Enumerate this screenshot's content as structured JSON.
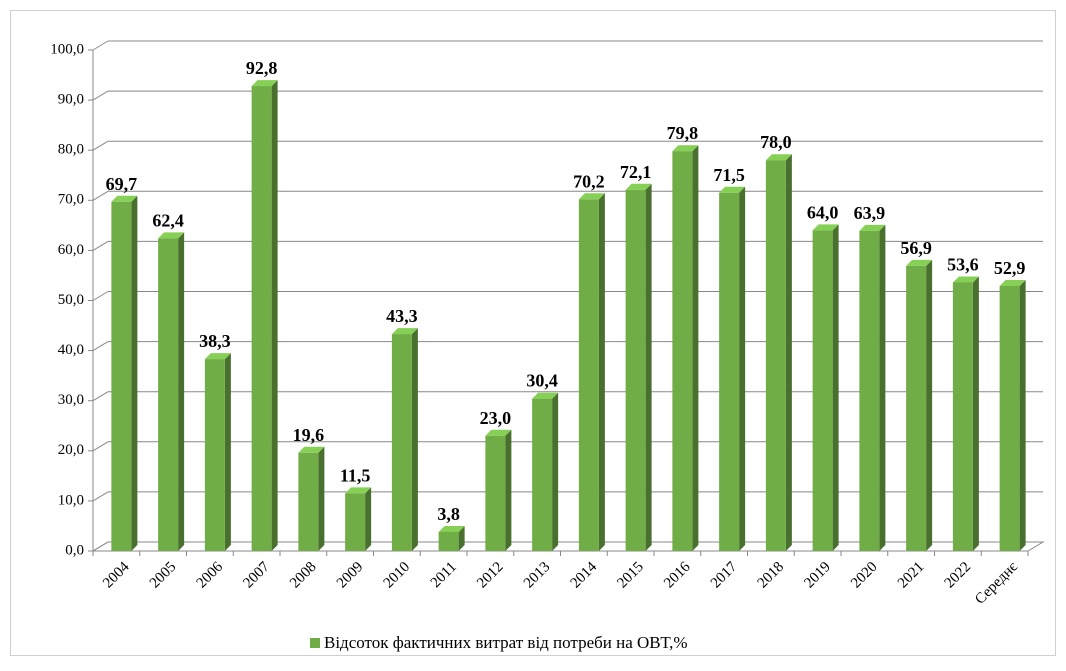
{
  "chart_data": {
    "type": "bar",
    "categories": [
      "2004",
      "2005",
      "2006",
      "2007",
      "2008",
      "2009",
      "2010",
      "2011",
      "2012",
      "2013",
      "2014",
      "2015",
      "2016",
      "2017",
      "2018",
      "2019",
      "2020",
      "2021",
      "2022",
      "Середнє"
    ],
    "series": [
      {
        "name": "Відсоток фактичних витрат від потреби на ОВТ,%",
        "color": "#70ad47",
        "values": [
          69.7,
          62.4,
          38.3,
          92.8,
          19.6,
          11.5,
          43.3,
          3.8,
          23.0,
          30.4,
          70.2,
          72.1,
          79.8,
          71.5,
          78.0,
          64.0,
          63.9,
          56.9,
          53.6,
          52.9
        ],
        "value_labels": [
          "69,7",
          "62,4",
          "38,3",
          "92,8",
          "19,6",
          "11,5",
          "43,3",
          "3,8",
          "23,0",
          "30,4",
          "70,2",
          "72,1",
          "79,8",
          "71,5",
          "78,0",
          "64,0",
          "63,9",
          "56,9",
          "53,6",
          "52,9"
        ]
      }
    ],
    "ylim": [
      0,
      100
    ],
    "yticks": [
      {
        "value": 0,
        "label": "0,0"
      },
      {
        "value": 10,
        "label": "10,0"
      },
      {
        "value": 20,
        "label": "20,0"
      },
      {
        "value": 30,
        "label": "30,0"
      },
      {
        "value": 40,
        "label": "40,0"
      },
      {
        "value": 50,
        "label": "50,0"
      },
      {
        "value": 60,
        "label": "60,0"
      },
      {
        "value": 70,
        "label": "70,0"
      },
      {
        "value": 80,
        "label": "80,0"
      },
      {
        "value": 90,
        "label": "90,0"
      },
      {
        "value": 100,
        "label": "100,0"
      }
    ],
    "grid": true,
    "legend": "bottom"
  }
}
